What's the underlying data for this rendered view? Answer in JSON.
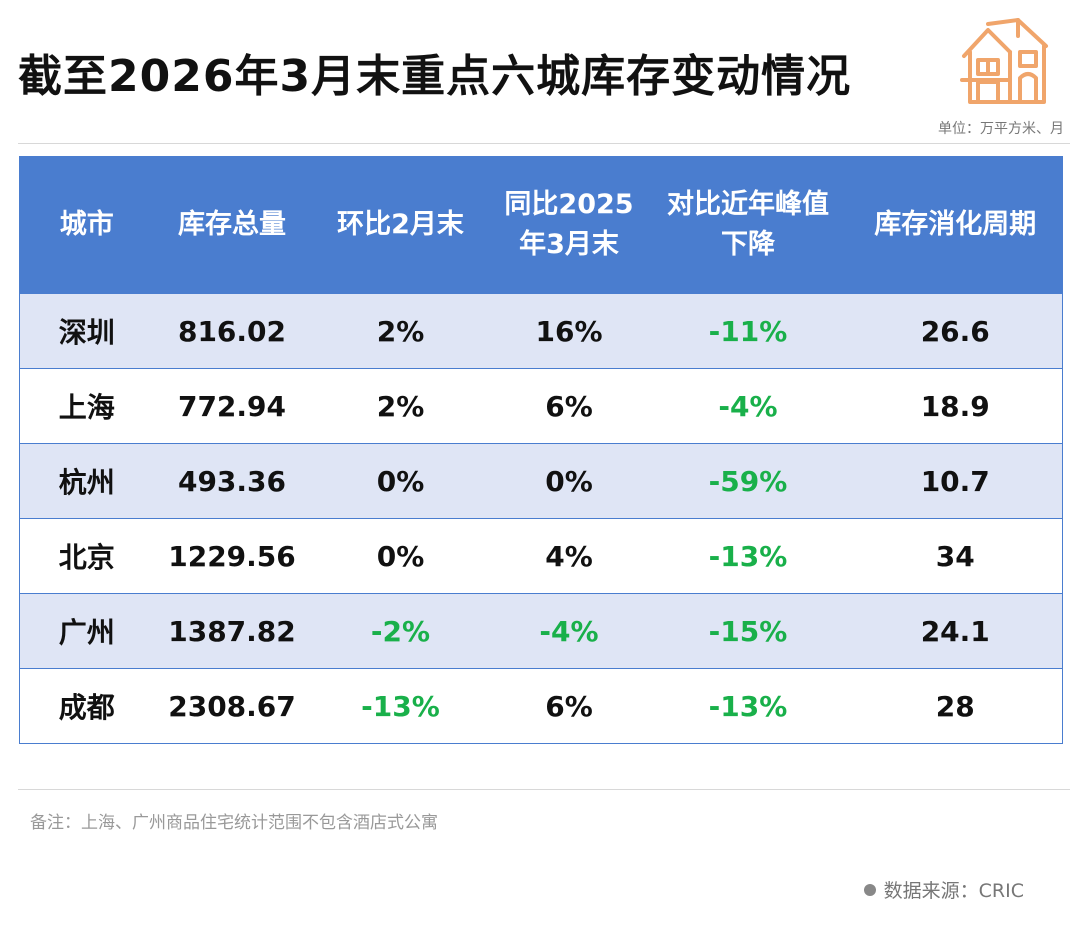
{
  "title": "截至2026年3月末重点六城库存变动情况",
  "unit": "单位：万平方米、月",
  "table": {
    "headers": [
      [
        "城市"
      ],
      [
        "库存总量"
      ],
      [
        "环比2月末"
      ],
      [
        "同比2025",
        "年3月末"
      ],
      [
        "对比近年峰值",
        "下降"
      ],
      [
        "库存消化周期"
      ]
    ],
    "rows": [
      {
        "city": "深圳",
        "total": "816.02",
        "mom": "2%",
        "yoy": "16%",
        "peak": "-11%",
        "cycle": "26.6"
      },
      {
        "city": "上海",
        "total": "772.94",
        "mom": "2%",
        "yoy": "6%",
        "peak": "-4%",
        "cycle": "18.9"
      },
      {
        "city": "杭州",
        "total": "493.36",
        "mom": "0%",
        "yoy": "0%",
        "peak": "-59%",
        "cycle": "10.7"
      },
      {
        "city": "北京",
        "total": "1229.56",
        "mom": "0%",
        "yoy": "4%",
        "peak": "-13%",
        "cycle": "34"
      },
      {
        "city": "广州",
        "total": "1387.82",
        "mom": "-2%",
        "yoy": "-4%",
        "peak": "-15%",
        "cycle": "24.1"
      },
      {
        "city": "成都",
        "total": "2308.67",
        "mom": "-13%",
        "yoy": "6%",
        "peak": "-13%",
        "cycle": "28"
      }
    ]
  },
  "note": "备注：上海、广州商品住宅统计范围不包含酒店式公寓",
  "source": "数据来源：CRIC",
  "colors": {
    "header_bg": "#4a7dcf",
    "stripe_bg": "#dfe5f5",
    "negative": "#19b04a",
    "icon": "#f0a56b"
  },
  "icons": {
    "logo": "house-icon",
    "source": "bullet-dot-icon"
  }
}
